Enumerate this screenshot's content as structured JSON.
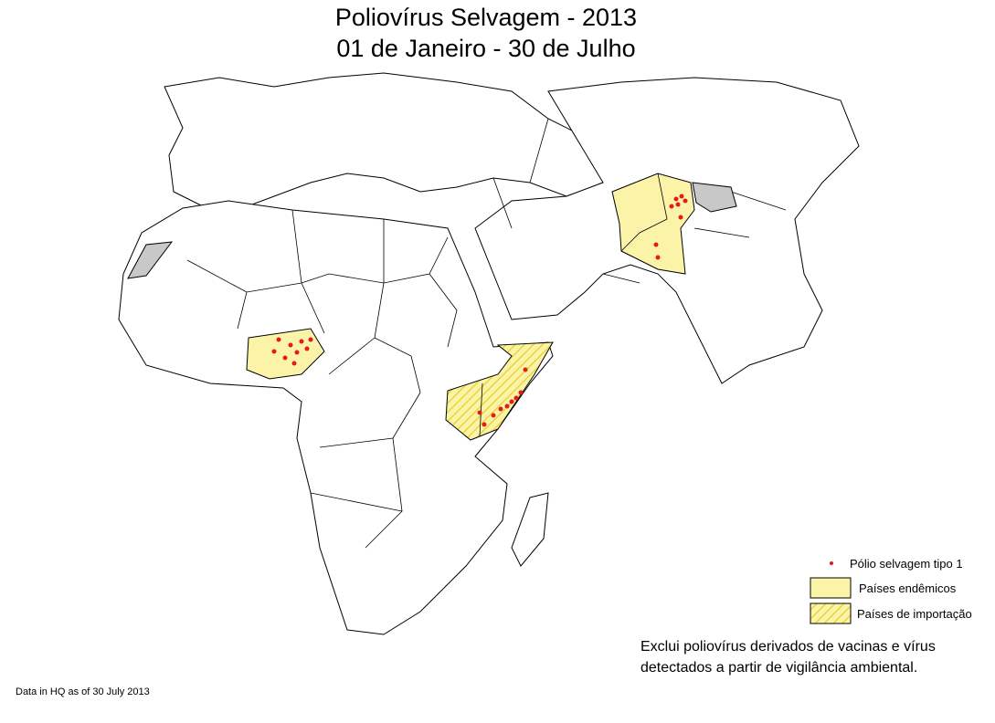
{
  "title": [
    "Poliovírus Selvagem - 2013",
    "01 de Janeiro - 30 de Julho"
  ],
  "legend": [
    "Pólio selvagem tipo 1",
    "Países endêmicos",
    "Países de importação"
  ],
  "note": [
    "Exclui poliovírus derivados de vacinas e vírus",
    "detectados a partir de vigilância ambiental."
  ],
  "source": "Data in HQ as of 30 July 2013"
}
